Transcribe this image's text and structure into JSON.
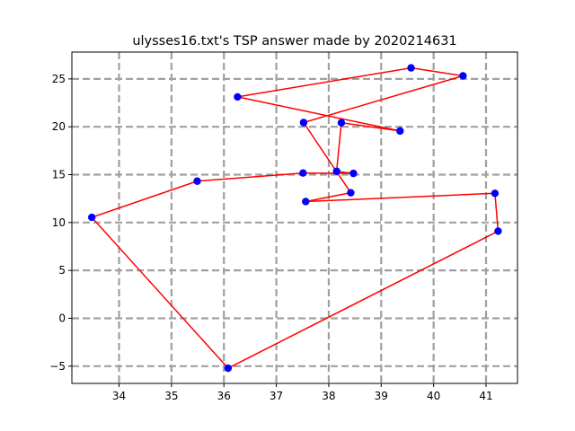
{
  "chart_data": {
    "type": "scatter",
    "title": "ulysses16.txt's TSP answer made by 2020214631",
    "xlabel": "",
    "ylabel": "",
    "xlim": [
      33.1,
      41.6
    ],
    "ylim": [
      -6.8,
      27.8
    ],
    "xticks": [
      34,
      35,
      36,
      37,
      38,
      39,
      40,
      41
    ],
    "yticks": [
      -5,
      0,
      5,
      10,
      15,
      20,
      25
    ],
    "grid": true,
    "grid_style": "dashed",
    "colors": {
      "points": "#0000ff",
      "route": "#ff0000",
      "grid": "#a0a0a0"
    },
    "points": [
      {
        "x": 38.24,
        "y": 20.42
      },
      {
        "x": 39.57,
        "y": 26.15
      },
      {
        "x": 40.56,
        "y": 25.32
      },
      {
        "x": 36.26,
        "y": 23.12
      },
      {
        "x": 33.48,
        "y": 10.54
      },
      {
        "x": 37.56,
        "y": 12.19
      },
      {
        "x": 38.42,
        "y": 13.11
      },
      {
        "x": 37.52,
        "y": 20.44
      },
      {
        "x": 41.23,
        "y": 9.1
      },
      {
        "x": 41.17,
        "y": 13.05
      },
      {
        "x": 36.08,
        "y": -5.21
      },
      {
        "x": 38.47,
        "y": 15.13
      },
      {
        "x": 38.15,
        "y": 15.35
      },
      {
        "x": 37.51,
        "y": 15.17
      },
      {
        "x": 35.49,
        "y": 14.32
      },
      {
        "x": 39.36,
        "y": 19.56
      }
    ],
    "route": [
      {
        "x": 38.24,
        "y": 20.42
      },
      {
        "x": 38.15,
        "y": 15.35
      },
      {
        "x": 38.47,
        "y": 15.13
      },
      {
        "x": 37.51,
        "y": 15.17
      },
      {
        "x": 35.49,
        "y": 14.32
      },
      {
        "x": 33.48,
        "y": 10.54
      },
      {
        "x": 36.08,
        "y": -5.21
      },
      {
        "x": 41.23,
        "y": 9.1
      },
      {
        "x": 41.17,
        "y": 13.05
      },
      {
        "x": 37.56,
        "y": 12.19
      },
      {
        "x": 38.42,
        "y": 13.11
      },
      {
        "x": 37.52,
        "y": 20.44
      },
      {
        "x": 40.56,
        "y": 25.32
      },
      {
        "x": 39.57,
        "y": 26.15
      },
      {
        "x": 36.26,
        "y": 23.12
      },
      {
        "x": 39.36,
        "y": 19.56
      },
      {
        "x": 38.24,
        "y": 20.42
      }
    ]
  }
}
